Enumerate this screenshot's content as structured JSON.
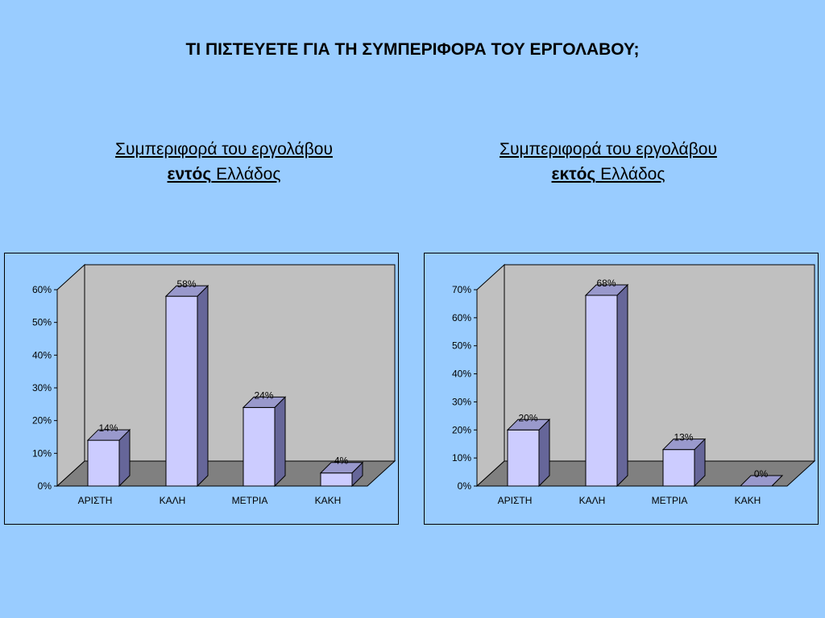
{
  "title": "ΤΙ ΠΙΣΤΕΥΕΤΕ ΓΙΑ ΤΗ ΣΥΜΠΕΡΙΦΟΡΑ ΤΟΥ ΕΡΓΟΛΑΒΟΥ;",
  "subtitles": [
    {
      "line1": "Συμπεριφορά του εργολάβου",
      "bold": "εντός",
      "rest": " Ελλάδος"
    },
    {
      "line1": "Συμπεριφορά του εργολάβου",
      "bold": "εκτός",
      "rest": " Ελλάδος"
    }
  ],
  "colors": {
    "background": "#99ccff",
    "bar_front": "#ccccff",
    "bar_side": "#666699",
    "bar_top": "#9999cc",
    "wall": "#c0c0c0",
    "floor": "#808080"
  },
  "chart_data": [
    {
      "type": "bar",
      "categories": [
        "ΑΡΙΣΤΗ",
        "ΚΑΛΗ",
        "ΜΕΤΡΙΑ",
        "ΚΑΚΗ"
      ],
      "values": [
        14,
        58,
        24,
        4
      ],
      "value_labels": [
        "14%",
        "58%",
        "24%",
        "4%"
      ],
      "ylim": [
        0,
        60
      ],
      "yticks": [
        0,
        10,
        20,
        30,
        40,
        50,
        60
      ],
      "ytick_labels": [
        "0%",
        "10%",
        "20%",
        "30%",
        "40%",
        "50%",
        "60%"
      ],
      "grid": false,
      "style": "3d"
    },
    {
      "type": "bar",
      "categories": [
        "ΑΡΙΣΤΗ",
        "ΚΑΛΗ",
        "ΜΕΤΡΙΑ",
        "ΚΑΚΗ"
      ],
      "values": [
        20,
        68,
        13,
        0
      ],
      "value_labels": [
        "20%",
        "68%",
        "13%",
        "0%"
      ],
      "ylim": [
        0,
        70
      ],
      "yticks": [
        0,
        10,
        20,
        30,
        40,
        50,
        60,
        70
      ],
      "ytick_labels": [
        "0%",
        "10%",
        "20%",
        "30%",
        "40%",
        "50%",
        "60%",
        "70%"
      ],
      "grid": false,
      "style": "3d"
    }
  ]
}
